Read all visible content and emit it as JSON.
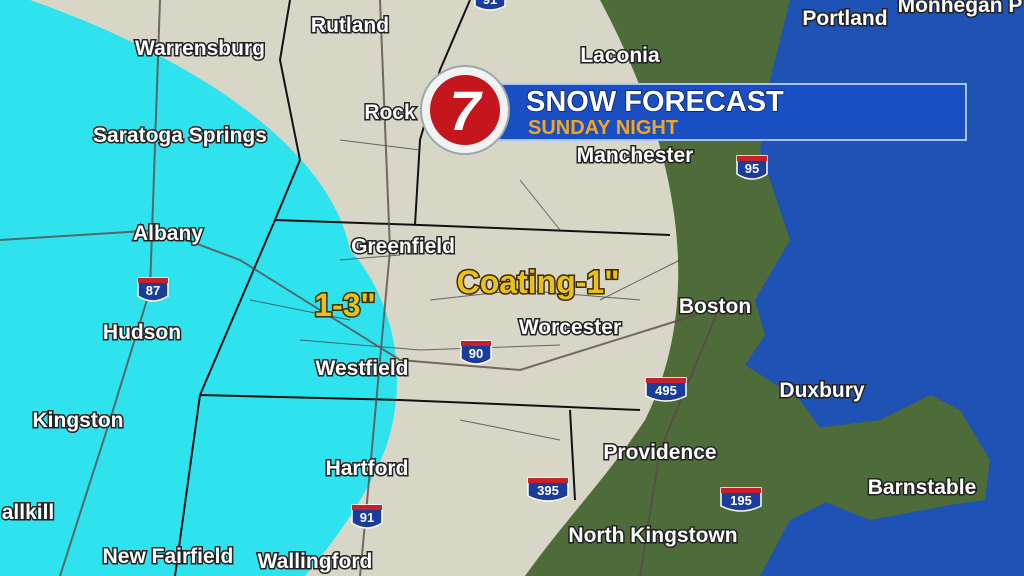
{
  "header": {
    "logo": "7",
    "title": "SNOW FORECAST",
    "subtitle": "SUNDAY NIGHT"
  },
  "zones": [
    {
      "label": "1-3\""
    },
    {
      "label": "Coating-1\""
    }
  ],
  "cities": [
    "Rutland",
    "Warrensburg",
    "Laconia",
    "Portland",
    "Monhegan P",
    "Rock",
    "Saratoga Springs",
    "Manchester",
    "Albany",
    "Greenfield",
    "Boston",
    "Hudson",
    "Worcester",
    "Westfield",
    "Duxbury",
    "Kingston",
    "Providence",
    "Hartford",
    "Barnstable",
    "allkill",
    "North Kingstown",
    "New Fairfield",
    "Wallingford"
  ],
  "highways": [
    "91",
    "95",
    "87",
    "90",
    "495",
    "395",
    "195",
    "91"
  ]
}
